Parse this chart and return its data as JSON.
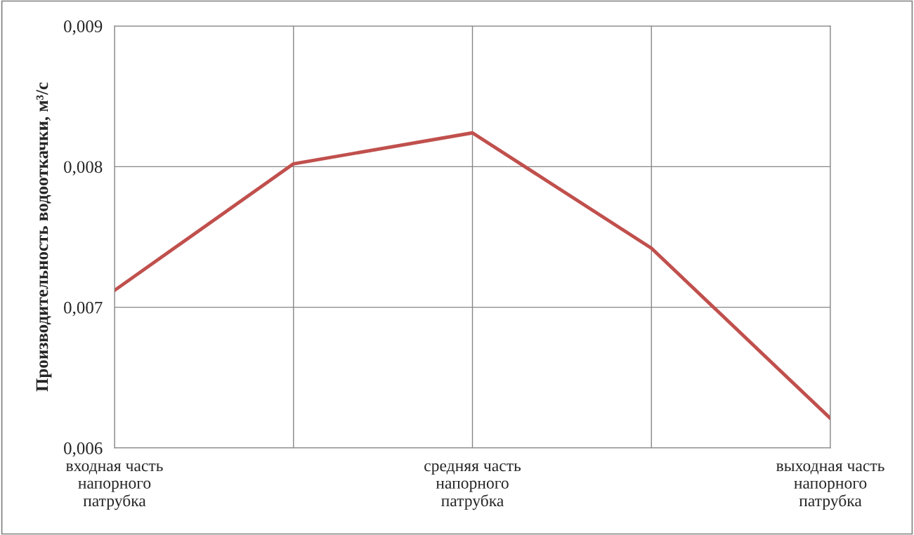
{
  "chart_data": {
    "type": "line",
    "ylabel": "Производительность водооткачки, м³/с",
    "categories": [
      "входная часть\nнапорного\nпатрубка",
      null,
      "средняя часть\nнапорного\nпатрубка",
      null,
      "выходная часть\nнапорного\nпатрубка"
    ],
    "series": [
      {
        "color": "#c0504d",
        "values": [
          0.00712,
          0.00802,
          0.00824,
          0.00742,
          0.00621
        ]
      }
    ],
    "ylim": [
      0.006,
      0.009
    ],
    "yticks": [
      {
        "value": 0.006,
        "label": "0,006"
      },
      {
        "value": 0.007,
        "label": "0,007"
      },
      {
        "value": 0.008,
        "label": "0,008"
      },
      {
        "value": 0.009,
        "label": "0,009"
      }
    ],
    "grid": true,
    "legend": false
  }
}
